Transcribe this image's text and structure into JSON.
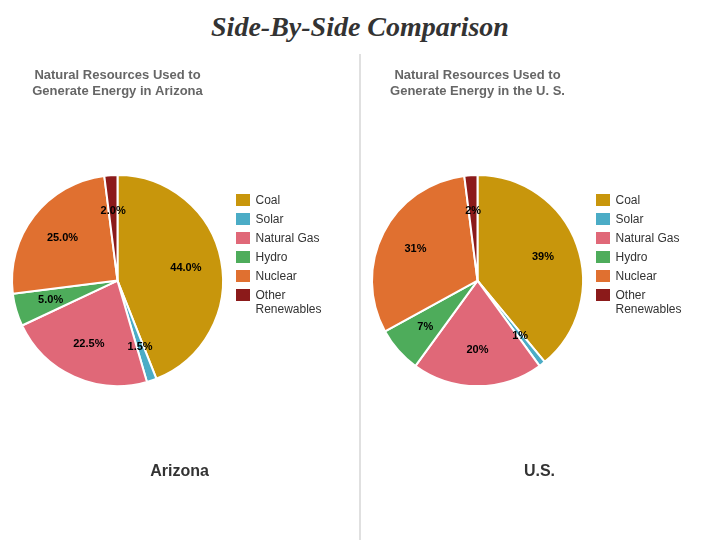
{
  "title": "Side-By-Side Comparison",
  "chart_data": [
    {
      "type": "pie",
      "subtitle": "Natural Resources Used to\nGenerate Energy in Arizona",
      "categories": [
        "Coal",
        "Solar",
        "Natural Gas",
        "Hydro",
        "Nuclear",
        "Other Renewables"
      ],
      "values": [
        44.0,
        1.5,
        22.5,
        5.0,
        25.0,
        2.0
      ],
      "value_labels": [
        "44.0%",
        "1.5%",
        "22.5%",
        "5.0%",
        "25.0%",
        "2.0%"
      ],
      "colors": [
        "#C8960C",
        "#4BACC6",
        "#E06878",
        "#4EAC5B",
        "#E07030",
        "#8B1A1A"
      ],
      "data_labels": true,
      "legend": "right",
      "annotations": [
        "Arizona"
      ]
    },
    {
      "type": "pie",
      "subtitle": "Natural Resources Used to\nGenerate Energy in the U. S.",
      "categories": [
        "Coal",
        "Solar",
        "Natural Gas",
        "Hydro",
        "Nuclear",
        "Other\nRenewables"
      ],
      "values": [
        39,
        1,
        20,
        7,
        31,
        2
      ],
      "value_labels": [
        "39%",
        "1%",
        "20%",
        "7%",
        "31%",
        "2%"
      ],
      "colors": [
        "#C8960C",
        "#4BACC6",
        "#E06878",
        "#4EAC5B",
        "#E07030",
        "#8B1A1A"
      ],
      "data_labels": true,
      "legend": "right",
      "annotations": [
        "U.S."
      ]
    }
  ]
}
